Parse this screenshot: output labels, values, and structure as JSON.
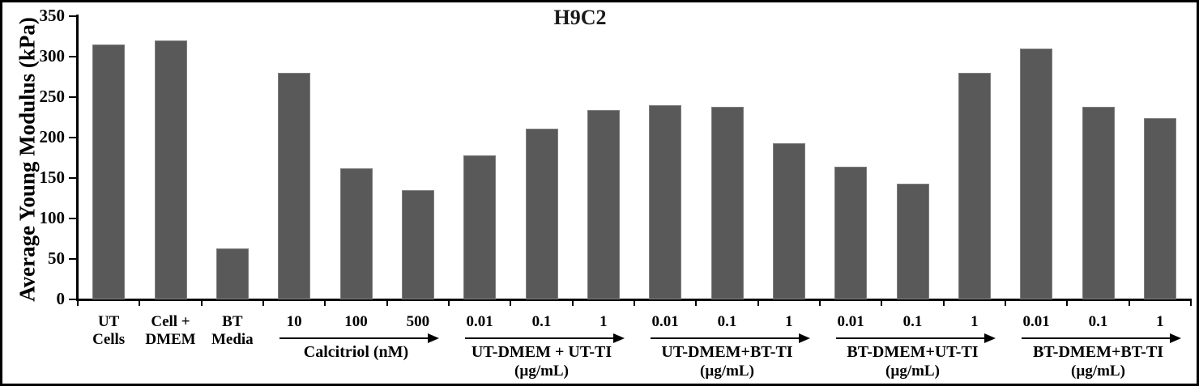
{
  "chart_data": {
    "type": "bar",
    "title": "H9C2",
    "ylabel": "Average Young Modulus (kPa)",
    "ylim": [
      0,
      350
    ],
    "yticks": [
      0,
      50,
      100,
      150,
      200,
      250,
      300,
      350
    ],
    "grid": false,
    "legend": null,
    "bar_color": "#595959",
    "axis_color": "#000000",
    "categories": [
      "UT\nCells",
      "Cell +\nDMEM",
      "BT\nMedia",
      "10",
      "100",
      "500",
      "0.01",
      "0.1",
      "1",
      "0.01",
      "0.1",
      "1",
      "0.01",
      "0.1",
      "1",
      "0.01",
      "0.1",
      "1"
    ],
    "values": [
      315,
      320,
      63,
      280,
      162,
      135,
      178,
      211,
      234,
      240,
      238,
      193,
      164,
      143,
      280,
      310,
      238,
      224
    ],
    "group_annotations": [
      {
        "label": "Calcitriol (nM)",
        "sublabel": "",
        "start_index": 3,
        "end_index": 5,
        "arrow": true
      },
      {
        "label": "UT-DMEM + UT-TI",
        "sublabel": "(µg/mL)",
        "start_index": 6,
        "end_index": 8,
        "arrow": true
      },
      {
        "label": "UT-DMEM+BT-TI",
        "sublabel": "(µg/mL)",
        "start_index": 9,
        "end_index": 11,
        "arrow": true
      },
      {
        "label": "BT-DMEM+UT-TI",
        "sublabel": "(µg/mL)",
        "start_index": 12,
        "end_index": 14,
        "arrow": true
      },
      {
        "label": "BT-DMEM+BT-TI",
        "sublabel": "(µg/mL)",
        "start_index": 15,
        "end_index": 17,
        "arrow": true
      }
    ]
  }
}
